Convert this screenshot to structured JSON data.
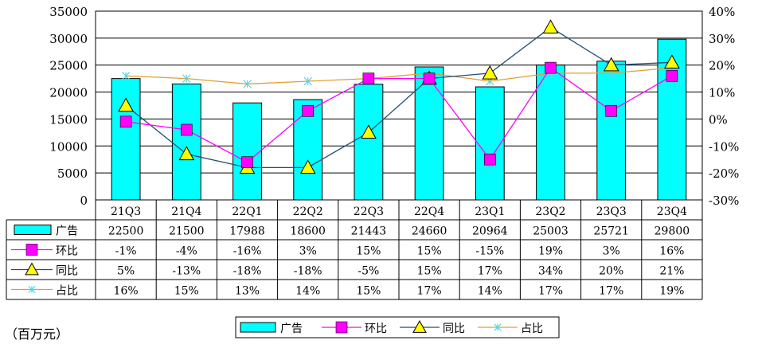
{
  "chart_data": {
    "type": "bar",
    "categories": [
      "21Q3",
      "21Q4",
      "22Q1",
      "22Q2",
      "22Q3",
      "22Q4",
      "23Q1",
      "23Q2",
      "23Q3",
      "23Q4"
    ],
    "series": [
      {
        "name": "广告",
        "type": "bar",
        "axis": "left",
        "values": [
          22500,
          21500,
          17988,
          18600,
          21443,
          24660,
          20964,
          25003,
          25721,
          29800
        ],
        "color": "#00FFFF"
      },
      {
        "name": "环比",
        "type": "line",
        "axis": "right",
        "marker": "square",
        "values": [
          -1,
          -4,
          -16,
          3,
          15,
          15,
          -15,
          19,
          3,
          16
        ],
        "color": "#FF00FF"
      },
      {
        "name": "同比",
        "type": "line",
        "axis": "right",
        "marker": "triangle",
        "values": [
          5,
          -13,
          -18,
          -18,
          -5,
          15,
          17,
          34,
          20,
          21
        ],
        "color": "#1F4E79"
      },
      {
        "name": "占比",
        "type": "line",
        "axis": "right",
        "marker": "x",
        "values": [
          16,
          15,
          13,
          14,
          15,
          17,
          14,
          17,
          17,
          19
        ],
        "color": "#E0A030"
      }
    ],
    "table": {
      "labels": [
        "广告",
        "环比",
        "同比",
        "占比"
      ],
      "rows": [
        [
          "22500",
          "21500",
          "17988",
          "18600",
          "21443",
          "24660",
          "20964",
          "25003",
          "25721",
          "29800"
        ],
        [
          "-1%",
          "-4%",
          "-16%",
          "3%",
          "15%",
          "15%",
          "-15%",
          "19%",
          "3%",
          "16%"
        ],
        [
          "5%",
          "-13%",
          "-18%",
          "-18%",
          "-5%",
          "15%",
          "17%",
          "34%",
          "20%",
          "21%"
        ],
        [
          "16%",
          "15%",
          "13%",
          "14%",
          "15%",
          "17%",
          "14%",
          "17%",
          "17%",
          "19%"
        ]
      ]
    },
    "y_left": {
      "ticks": [
        "0",
        "5000",
        "10000",
        "15000",
        "20000",
        "25000",
        "30000",
        "35000"
      ],
      "ylim": [
        0,
        35000
      ]
    },
    "y_right": {
      "ticks": [
        "-30%",
        "-20%",
        "-10%",
        "0%",
        "10%",
        "20%",
        "30%",
        "40%"
      ],
      "ylim": [
        -30,
        40
      ]
    },
    "grid": true,
    "legend": {
      "position": "bottom",
      "items": [
        "广告",
        "环比",
        "同比",
        "占比"
      ]
    },
    "unit_note": "（百万元）"
  }
}
